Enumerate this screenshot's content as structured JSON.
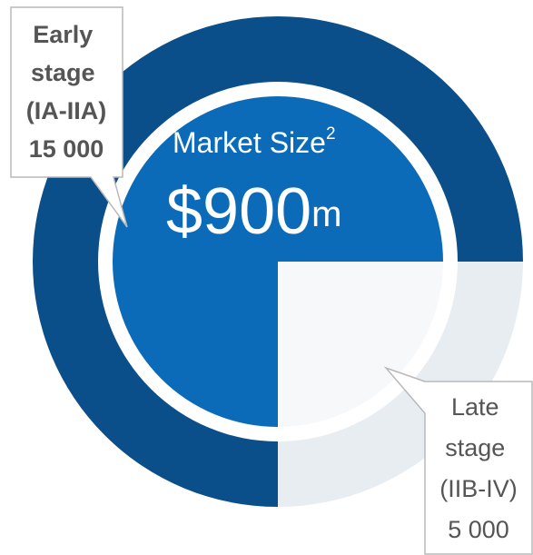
{
  "chart_data": {
    "type": "donut",
    "categories": [
      "Early stage (IA-IIA)",
      "Late stage (IIB-IV)"
    ],
    "values": [
      15000,
      5000
    ],
    "value_labels": [
      "15 000",
      "5 000"
    ],
    "colors": [
      "#0b4f8a",
      "#e8edf2"
    ],
    "inner_colors": [
      "#0b6bb8",
      "#f6f8fa"
    ],
    "center_title": "Market Size",
    "center_title_note": "2",
    "center_value": 900,
    "center_value_label": "$900m"
  }
}
